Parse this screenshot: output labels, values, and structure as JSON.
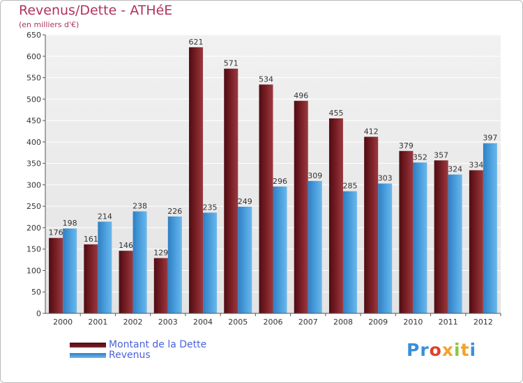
{
  "title": "Revenus/Dette - ATHéE",
  "subtitle": "(en milliers d'€)",
  "colors": {
    "dette": "#7a1f25",
    "revenus": "#4fa3e0",
    "title": "#b0335a"
  },
  "chart_data": {
    "type": "bar",
    "title": "Revenus/Dette - ATHéE",
    "ylabel": "(en milliers d'€)",
    "xlabel": "",
    "categories": [
      "2000",
      "2001",
      "2002",
      "2003",
      "2004",
      "2005",
      "2006",
      "2007",
      "2008",
      "2009",
      "2010",
      "2011",
      "2012"
    ],
    "series": [
      {
        "name": "Montant de la Dette",
        "values": [
          176,
          161,
          146,
          129,
          621,
          571,
          534,
          496,
          455,
          412,
          379,
          357,
          334
        ]
      },
      {
        "name": "Revenus",
        "values": [
          198,
          214,
          238,
          226,
          235,
          249,
          296,
          309,
          285,
          303,
          352,
          324,
          397
        ]
      }
    ],
    "ylim": [
      0,
      650
    ],
    "yticks": [
      0,
      50,
      100,
      150,
      200,
      250,
      300,
      350,
      400,
      450,
      500,
      550,
      600,
      650
    ],
    "grid": true,
    "legend": "bottom-left"
  },
  "legend": {
    "dette": "Montant de la Dette",
    "revenus": "Revenus"
  },
  "logo": {
    "text": "Proxiti"
  }
}
